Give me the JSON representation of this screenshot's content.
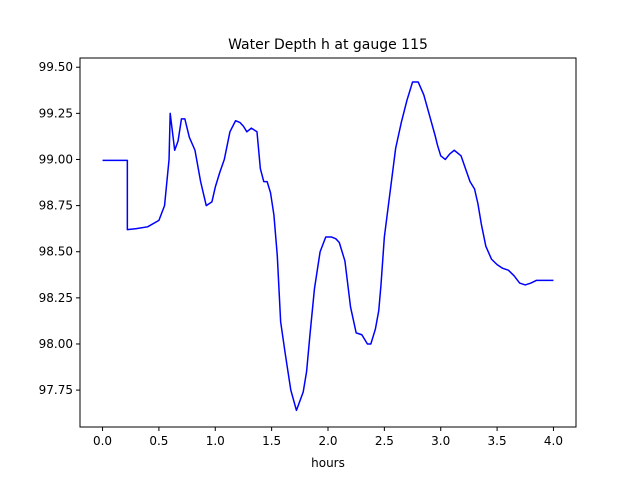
{
  "chart_data": {
    "type": "line",
    "title": "Water Depth h at gauge 115",
    "xlabel": "hours",
    "ylabel": "",
    "xlim": [
      -0.2,
      4.2
    ],
    "ylim": [
      97.55,
      99.55
    ],
    "xticks": [
      0.0,
      0.5,
      1.0,
      1.5,
      2.0,
      2.5,
      3.0,
      3.5,
      4.0
    ],
    "xtick_labels": [
      "0.0",
      "0.5",
      "1.0",
      "1.5",
      "2.0",
      "2.5",
      "3.0",
      "3.5",
      "4.0"
    ],
    "yticks": [
      97.75,
      98.0,
      98.25,
      98.5,
      98.75,
      99.0,
      99.25,
      99.5
    ],
    "ytick_labels": [
      "97.75",
      "98.00",
      "98.25",
      "98.50",
      "98.75",
      "99.00",
      "99.25",
      "99.50"
    ],
    "grid": false,
    "colors": {
      "line": "#0000ff",
      "axes": "#000000",
      "background": "#ffffff"
    },
    "series": [
      {
        "x": [
          0.0,
          0.21,
          0.22,
          0.22,
          0.3,
          0.4,
          0.5,
          0.55,
          0.59,
          0.6,
          0.64,
          0.67,
          0.7,
          0.73,
          0.77,
          0.82,
          0.87,
          0.92,
          0.97,
          1.0,
          1.04,
          1.08,
          1.13,
          1.18,
          1.22,
          1.25,
          1.28,
          1.32,
          1.37,
          1.4,
          1.43,
          1.46,
          1.49,
          1.52,
          1.55,
          1.58,
          1.62,
          1.67,
          1.72,
          1.78,
          1.81,
          1.84,
          1.88,
          1.93,
          1.98,
          2.03,
          2.07,
          2.1,
          2.15,
          2.2,
          2.25,
          2.3,
          2.35,
          2.38,
          2.42,
          2.45,
          2.47,
          2.5,
          2.55,
          2.6,
          2.65,
          2.7,
          2.75,
          2.8,
          2.85,
          2.9,
          2.95,
          2.97,
          3.0,
          3.04,
          3.08,
          3.12,
          3.18,
          3.22,
          3.26,
          3.3,
          3.33,
          3.36,
          3.4,
          3.45,
          3.5,
          3.55,
          3.6,
          3.65,
          3.7,
          3.75,
          3.8,
          3.85,
          3.9,
          3.95,
          4.0
        ],
        "values": [
          98.995,
          98.995,
          98.995,
          98.62,
          98.625,
          98.635,
          98.67,
          98.75,
          99.0,
          99.25,
          99.05,
          99.1,
          99.22,
          99.22,
          99.12,
          99.05,
          98.88,
          98.75,
          98.77,
          98.85,
          98.93,
          99.0,
          99.15,
          99.21,
          99.2,
          99.18,
          99.15,
          99.17,
          99.15,
          98.95,
          98.88,
          98.88,
          98.82,
          98.7,
          98.48,
          98.12,
          97.95,
          97.75,
          97.64,
          97.74,
          97.85,
          98.05,
          98.3,
          98.5,
          98.58,
          98.58,
          98.57,
          98.55,
          98.45,
          98.2,
          98.06,
          98.05,
          98.0,
          98.0,
          98.08,
          98.18,
          98.32,
          98.58,
          98.82,
          99.06,
          99.2,
          99.32,
          99.42,
          99.42,
          99.35,
          99.24,
          99.13,
          99.08,
          99.02,
          99.0,
          99.03,
          99.05,
          99.02,
          98.95,
          98.88,
          98.84,
          98.76,
          98.65,
          98.53,
          98.46,
          98.43,
          98.41,
          98.4,
          98.37,
          98.33,
          98.32,
          98.33,
          98.345,
          98.345,
          98.345,
          98.345
        ]
      }
    ]
  }
}
